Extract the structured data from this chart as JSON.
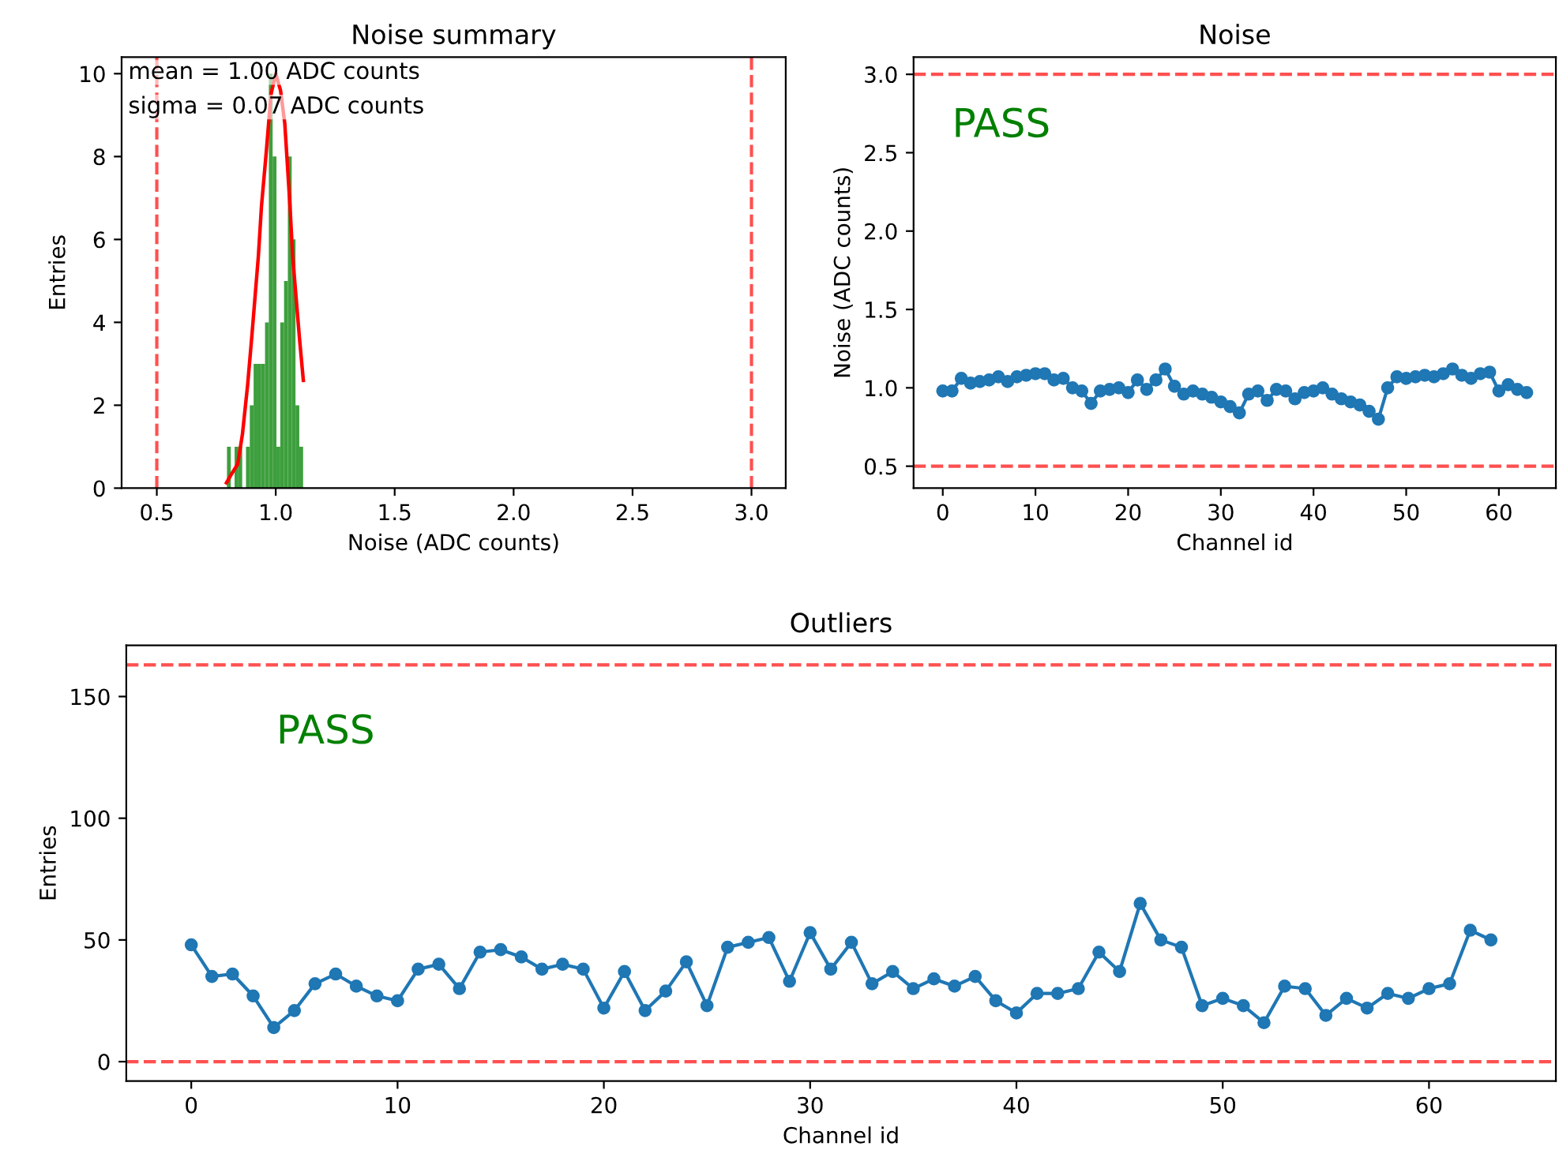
{
  "chart_data": [
    {
      "type": "histogram",
      "title": "Noise summary",
      "xlabel": "Noise (ADC counts)",
      "ylabel": "Entries",
      "bins": [
        0.795,
        0.811,
        0.827,
        0.843,
        0.859,
        0.875,
        0.891,
        0.907,
        0.923,
        0.939,
        0.955,
        0.971,
        0.987,
        1.003,
        1.019,
        1.035,
        1.051,
        1.067,
        1.083,
        1.099,
        1.115
      ],
      "series": [
        {
          "type": "histogram",
          "color": "#3d9f3d",
          "values": [
            1,
            0,
            1,
            1,
            0,
            1,
            2,
            3,
            3,
            3,
            4,
            10,
            8,
            1,
            4,
            5,
            8,
            6,
            2,
            1
          ]
        },
        {
          "type": "line",
          "color": "#ff0000",
          "x": [
            0.793,
            0.81,
            0.84,
            0.86,
            0.882,
            0.9,
            0.927,
            0.94,
            0.96,
            0.98,
            1.0,
            1.02,
            1.038,
            1.06,
            1.071,
            1.1,
            1.116
          ],
          "values": [
            0.13,
            0.3,
            0.58,
            1.3,
            2.5,
            3.7,
            5.6,
            6.8,
            8.1,
            9.5,
            10,
            9.6,
            8.8,
            6.8,
            5.6,
            3.6,
            2.6
          ]
        }
      ],
      "xlim": [
        0.352,
        3.144
      ],
      "ylim": [
        0,
        10.4
      ],
      "xticks": [
        0.5,
        {
          "value": 1,
          "label": "1.0"
        },
        1.5,
        {
          "value": 2,
          "label": "2.0"
        },
        2.5,
        {
          "value": 3,
          "label": "3.0"
        }
      ],
      "yticks": [
        0,
        2,
        4,
        6,
        8,
        10
      ],
      "ref_lines": [
        {
          "axis": "x",
          "value": 0.5,
          "color": "#ff5050",
          "line_style": "dashed"
        },
        {
          "axis": "x",
          "value": 3.0,
          "color": "#ff5050",
          "line_style": "dashed"
        }
      ],
      "annotations": [
        "mean = 1.00 ADC counts",
        "sigma = 0.07 ADC counts"
      ],
      "grid": false,
      "legend": false
    },
    {
      "type": "line",
      "title": "Noise",
      "xlabel": "Channel id",
      "ylabel": "Noise (ADC counts)",
      "marker": "circle",
      "x": [
        0,
        1,
        2,
        3,
        4,
        5,
        6,
        7,
        8,
        9,
        10,
        11,
        12,
        13,
        14,
        15,
        16,
        17,
        18,
        19,
        20,
        21,
        22,
        23,
        24,
        25,
        26,
        27,
        28,
        29,
        30,
        31,
        32,
        33,
        34,
        35,
        36,
        37,
        38,
        39,
        40,
        41,
        42,
        43,
        44,
        45,
        46,
        47,
        48,
        49,
        50,
        51,
        52,
        53,
        54,
        55,
        56,
        57,
        58,
        59,
        60,
        61,
        62,
        63
      ],
      "series": [
        {
          "color": "#1f77b4",
          "values": [
            0.98,
            0.98,
            1.06,
            1.03,
            1.04,
            1.05,
            1.07,
            1.04,
            1.07,
            1.08,
            1.09,
            1.09,
            1.05,
            1.06,
            1.0,
            0.98,
            0.9,
            0.98,
            0.99,
            1.0,
            0.97,
            1.05,
            0.99,
            1.05,
            1.12,
            1.01,
            0.96,
            0.98,
            0.96,
            0.94,
            0.91,
            0.88,
            0.84,
            0.96,
            0.98,
            0.92,
            0.99,
            0.98,
            0.93,
            0.97,
            0.98,
            1.0,
            0.96,
            0.93,
            0.91,
            0.89,
            0.85,
            0.8,
            1.0,
            1.07,
            1.06,
            1.07,
            1.08,
            1.07,
            1.09,
            1.12,
            1.08,
            1.06,
            1.09,
            1.1,
            0.98,
            1.02,
            0.99,
            0.97
          ]
        }
      ],
      "xlim": [
        -3.15,
        66.15
      ],
      "ylim": [
        0.36,
        3.11
      ],
      "xticks": [
        0,
        10,
        20,
        30,
        40,
        50,
        60
      ],
      "yticks": [
        0.5,
        {
          "value": 1,
          "label": "1.0"
        },
        1.5,
        {
          "value": 2,
          "label": "2.0"
        },
        2.5,
        {
          "value": 3,
          "label": "3.0"
        }
      ],
      "ref_lines": [
        {
          "axis": "y",
          "value": 0.5,
          "color": "#ff5050",
          "line_style": "dashed"
        },
        {
          "axis": "y",
          "value": 3.0,
          "color": "#ff5050",
          "line_style": "dashed"
        }
      ],
      "annotations": [
        "PASS"
      ],
      "grid": false,
      "legend": false
    },
    {
      "type": "line",
      "title": "Outliers",
      "xlabel": "Channel id",
      "ylabel": "Entries",
      "marker": "circle",
      "x": [
        0,
        1,
        2,
        3,
        4,
        5,
        6,
        7,
        8,
        9,
        10,
        11,
        12,
        13,
        14,
        15,
        16,
        17,
        18,
        19,
        20,
        21,
        22,
        23,
        24,
        25,
        26,
        27,
        28,
        29,
        30,
        31,
        32,
        33,
        34,
        35,
        36,
        37,
        38,
        39,
        40,
        41,
        42,
        43,
        44,
        45,
        46,
        47,
        48,
        49,
        50,
        51,
        52,
        53,
        54,
        55,
        56,
        57,
        58,
        59,
        60,
        61,
        62,
        63
      ],
      "series": [
        {
          "color": "#1f77b4",
          "values": [
            48,
            35,
            36,
            27,
            14,
            21,
            32,
            36,
            31,
            27,
            25,
            38,
            40,
            30,
            45,
            46,
            43,
            38,
            40,
            38,
            22,
            37,
            21,
            29,
            41,
            23,
            47,
            49,
            51,
            33,
            53,
            38,
            49,
            32,
            37,
            30,
            34,
            31,
            35,
            25,
            20,
            28,
            28,
            30,
            45,
            37,
            65,
            50,
            47,
            23,
            26,
            23,
            16,
            31,
            30,
            19,
            26,
            22,
            28,
            26,
            30,
            32,
            54,
            50
          ]
        }
      ],
      "xlim": [
        -3.15,
        66.15
      ],
      "ylim": [
        -8,
        171
      ],
      "xticks": [
        0,
        10,
        20,
        30,
        40,
        50,
        60
      ],
      "yticks": [
        0,
        50,
        100,
        150
      ],
      "ref_lines": [
        {
          "axis": "y",
          "value": 0,
          "color": "#ff5050",
          "line_style": "dashed"
        },
        {
          "axis": "y",
          "value": 163,
          "color": "#ff5050",
          "line_style": "dashed"
        }
      ],
      "annotations": [
        "PASS"
      ],
      "grid": false,
      "legend": false
    }
  ]
}
